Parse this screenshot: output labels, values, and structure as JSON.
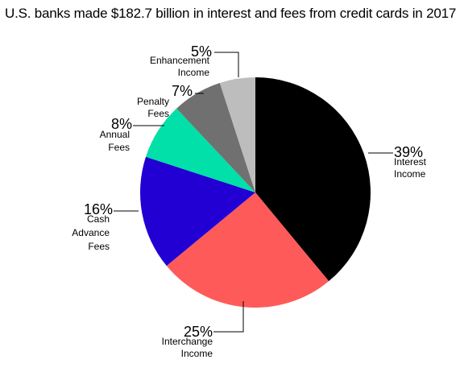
{
  "chart_data": {
    "type": "pie",
    "title": "U.S. banks made $182.7 billion in interest and fees from credit cards in 2017",
    "start_angle_deg": 0,
    "direction": "clockwise",
    "slices": [
      {
        "label": "Interest Income",
        "label_lines": [
          "Interest",
          "Income"
        ],
        "value": 39,
        "display": "39%",
        "color": "#000000"
      },
      {
        "label": "Interchange Income",
        "label_lines": [
          "Interchange",
          "Income"
        ],
        "value": 25,
        "display": "25%",
        "color": "#ff5a5a"
      },
      {
        "label": "Cash Advance Fees",
        "label_lines": [
          "Cash",
          "Advance",
          "Fees"
        ],
        "value": 16,
        "display": "16%",
        "color": "#2200d4"
      },
      {
        "label": "Annual Fees",
        "label_lines": [
          "Annual",
          "Fees"
        ],
        "value": 8,
        "display": "8%",
        "color": "#00e0a8"
      },
      {
        "label": "Penalty Fees",
        "label_lines": [
          "Penalty",
          "Fees"
        ],
        "value": 7,
        "display": "7%",
        "color": "#707070"
      },
      {
        "label": "Enhancement Income",
        "label_lines": [
          "Enhancement",
          "Income"
        ],
        "value": 5,
        "display": "5%",
        "color": "#bdbdbd"
      }
    ]
  }
}
